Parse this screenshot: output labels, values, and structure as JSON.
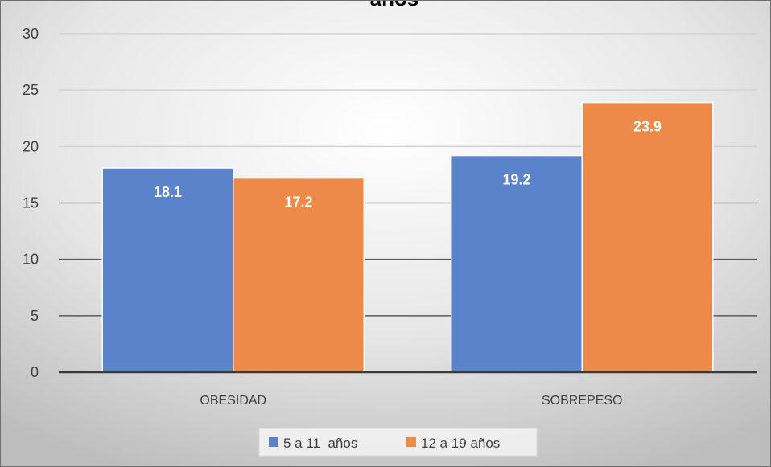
{
  "chart_data": {
    "type": "bar",
    "title": "años",
    "categories": [
      "OBESIDAD",
      "SOBREPESO"
    ],
    "series": [
      {
        "name": "5 a 11  años",
        "values": [
          18.1,
          19.2
        ],
        "color": "#5A83CB"
      },
      {
        "name": "12 a 19 años",
        "values": [
          17.2,
          23.9
        ],
        "color": "#EE8A47"
      }
    ],
    "ylim": [
      0,
      30
    ],
    "yticks": [
      0,
      5,
      10,
      15,
      20,
      25,
      30
    ],
    "data_labels": true,
    "grid": true,
    "legend": "bottom"
  }
}
